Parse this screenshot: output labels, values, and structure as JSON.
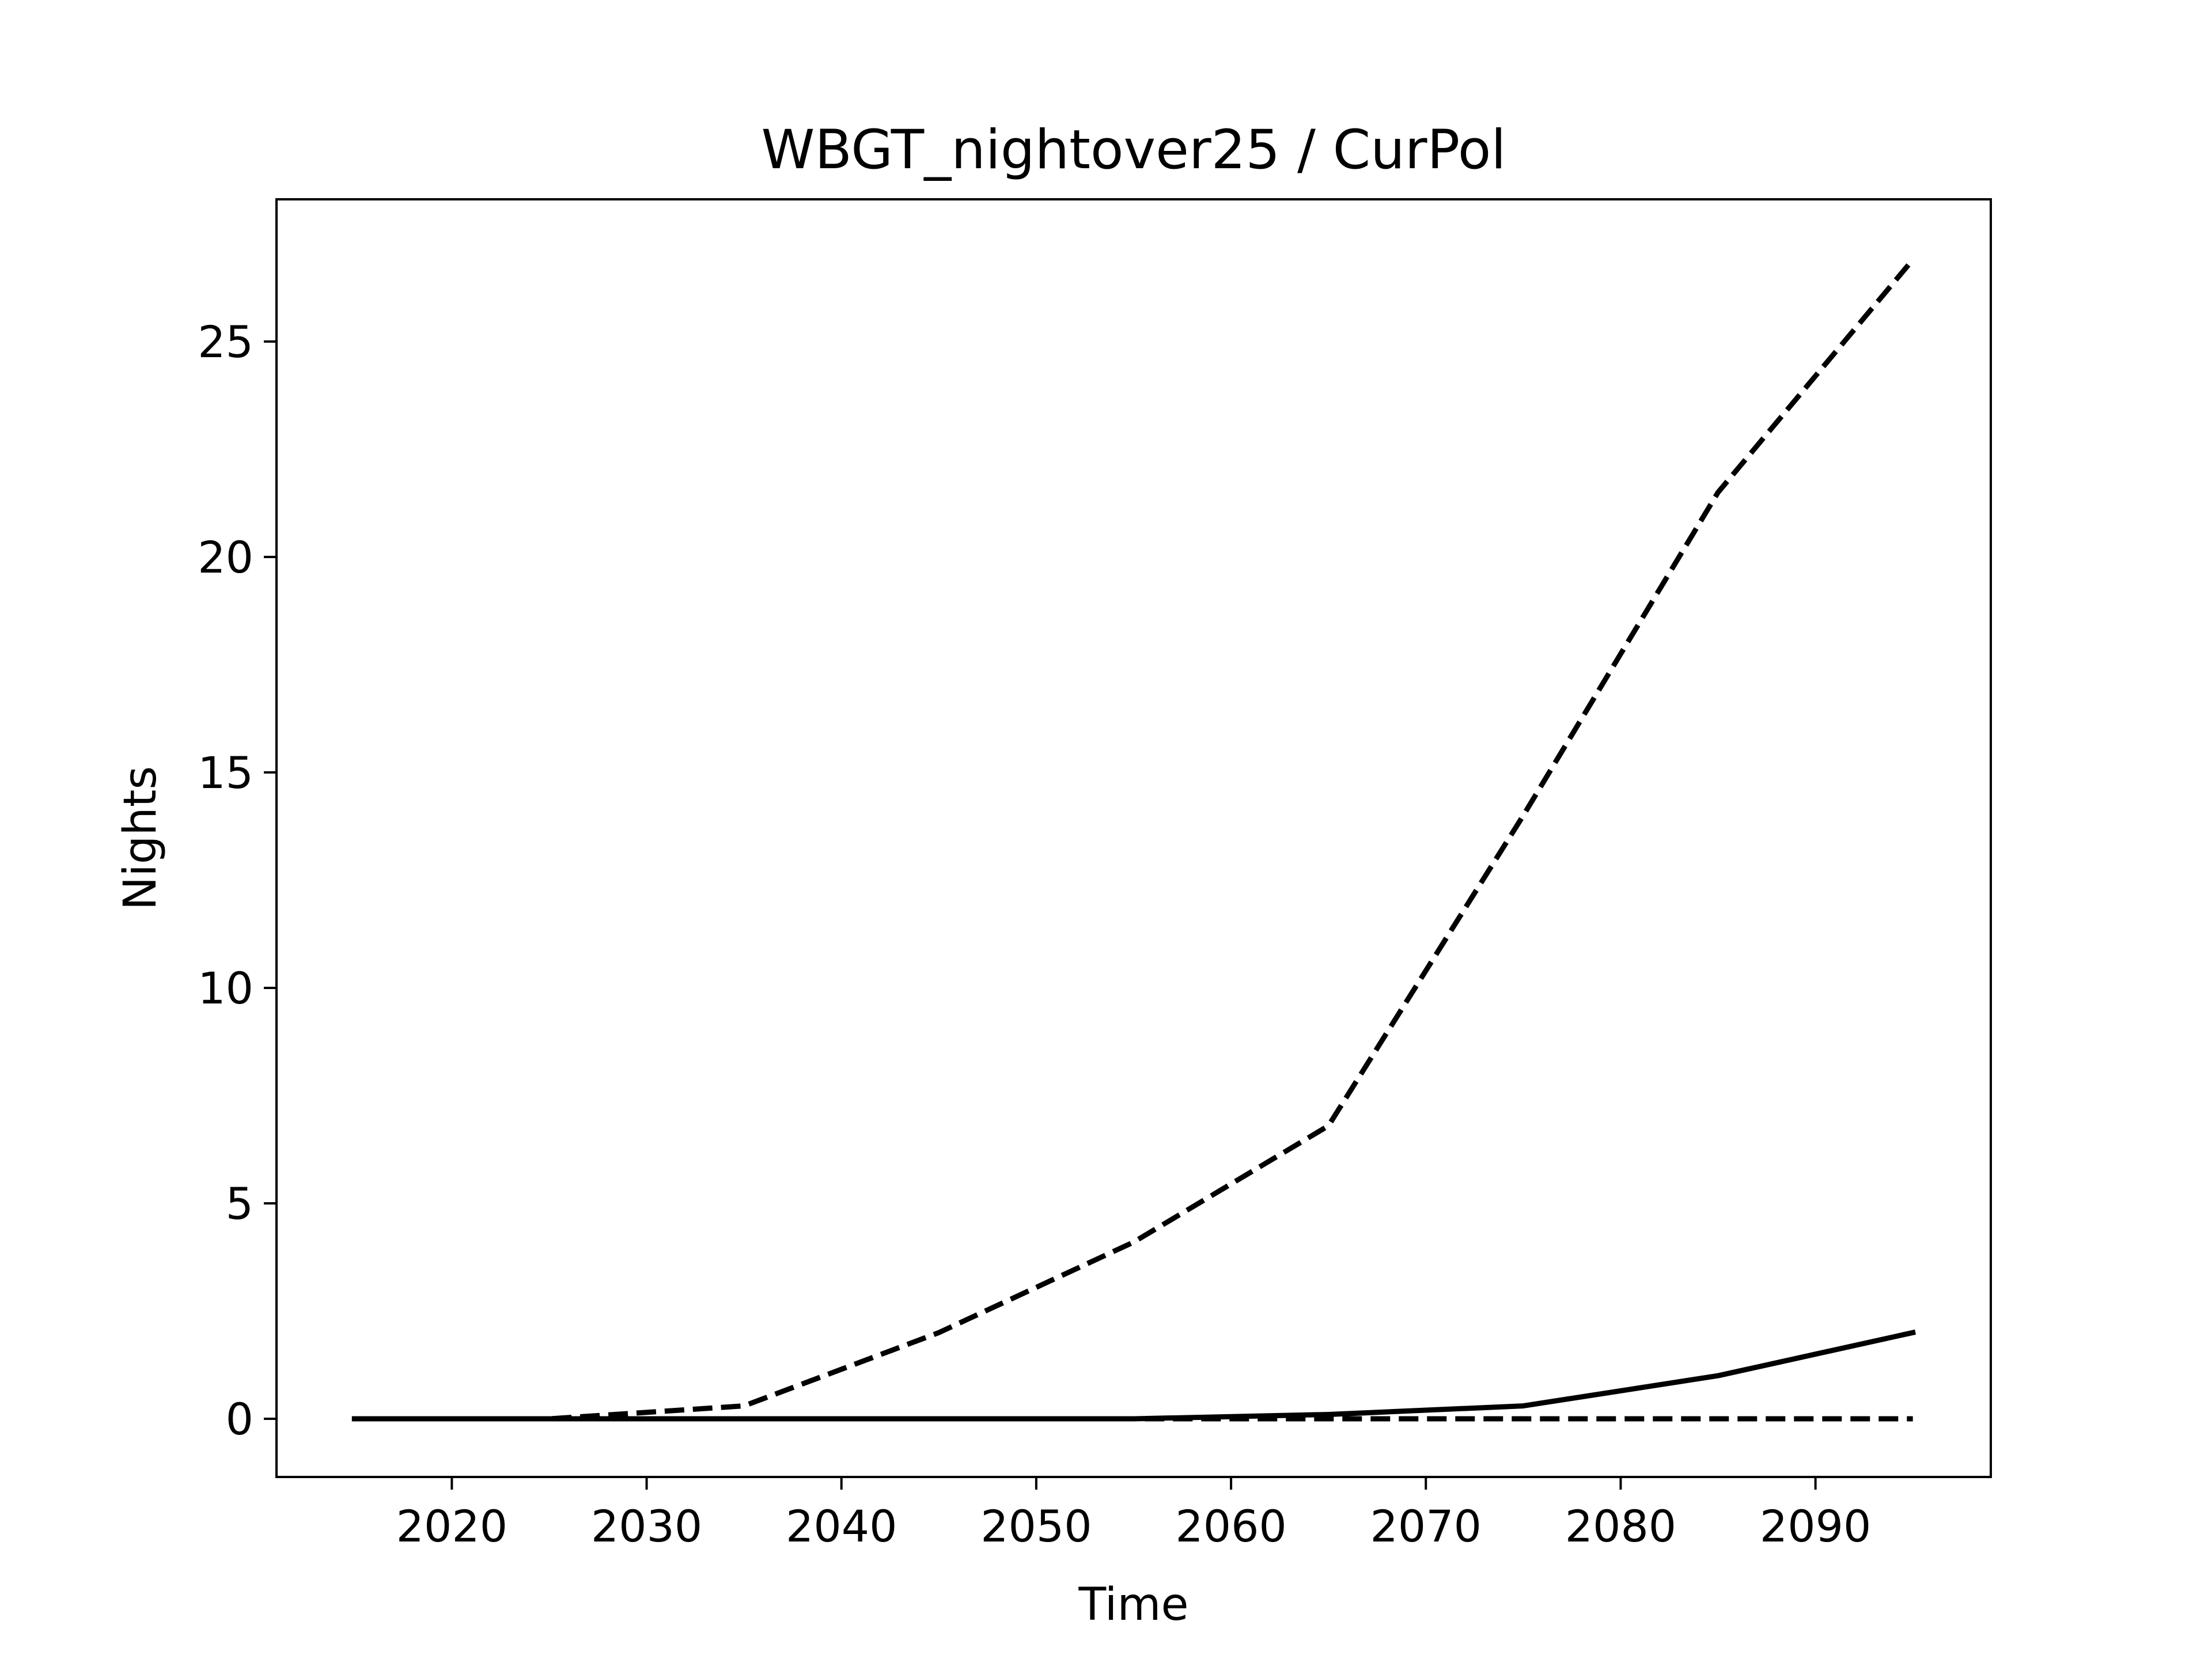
{
  "chart_data": {
    "type": "line",
    "title": "WBGT_nightover25 / CurPol",
    "xlabel": "Time",
    "ylabel": "Nights",
    "xlim": [
      2011,
      2099
    ],
    "ylim": [
      -1.35,
      28.3
    ],
    "xticks": [
      2020,
      2030,
      2040,
      2050,
      2060,
      2070,
      2080,
      2090
    ],
    "yticks": [
      0,
      5,
      10,
      15,
      20,
      25
    ],
    "grid": false,
    "series": [
      {
        "style": "solid",
        "color": "#000000",
        "x": [
          2015,
          2025,
          2035,
          2045,
          2055,
          2065,
          2075,
          2085,
          2095
        ],
        "y": [
          0,
          0,
          0,
          0,
          0,
          0.1,
          0.3,
          1.0,
          2.0
        ]
      },
      {
        "style": "dashed",
        "color": "#000000",
        "x": [
          2015,
          2025,
          2035,
          2045,
          2055,
          2065,
          2075,
          2085,
          2095
        ],
        "y": [
          0,
          0,
          0.3,
          2.0,
          4.1,
          6.8,
          14.0,
          21.5,
          26.9
        ]
      },
      {
        "style": "dashed",
        "color": "#000000",
        "x": [
          2015,
          2025,
          2035,
          2045,
          2055,
          2065,
          2075,
          2085,
          2095
        ],
        "y": [
          0,
          0,
          0,
          0,
          0,
          0,
          0,
          0,
          0
        ]
      }
    ]
  }
}
